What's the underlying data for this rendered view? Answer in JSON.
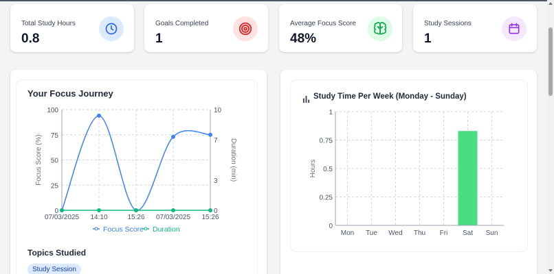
{
  "stats": [
    {
      "title": "Total Study Hours",
      "value": "0.8",
      "icon": "clock-icon",
      "icon_bg": "#dbeafe",
      "icon_color": "#2563eb"
    },
    {
      "title": "Goals Completed",
      "value": "1",
      "icon": "target-icon",
      "icon_bg": "#fee2e2",
      "icon_color": "#dc2626"
    },
    {
      "title": "Average Focus Score",
      "value": "48%",
      "icon": "brain-icon",
      "icon_bg": "#dcfce7",
      "icon_color": "#16a34a"
    },
    {
      "title": "Study Sessions",
      "value": "1",
      "icon": "calendar-icon",
      "icon_bg": "#f3e8ff",
      "icon_color": "#9333ea"
    }
  ],
  "focus_panel": {
    "title": "Your Focus Journey",
    "topics_title": "Topics Studied",
    "topics": [
      "Study Session"
    ]
  },
  "weekly_panel": {
    "title": "Study Time Per Week (Monday - Sunday)",
    "icon": "bar-chart-icon"
  },
  "chart_data": [
    {
      "type": "line",
      "categories": [
        "07/03/2025",
        "14:10",
        "15:26",
        "07/03/2025",
        "15:26"
      ],
      "series": [
        {
          "name": "Focus Score",
          "axis": "left",
          "color": "#3b82f6",
          "values": [
            0,
            94,
            0,
            73,
            75
          ]
        },
        {
          "name": "Duration",
          "axis": "right",
          "color": "#10b981",
          "values": [
            0,
            0,
            0,
            0,
            0
          ]
        }
      ],
      "ylabel": "Focus Score (%)",
      "ylim": [
        0,
        100
      ],
      "yticks": [
        0,
        25,
        50,
        75,
        100
      ],
      "y2label": "Duration (min)",
      "y2lim": [
        0,
        10
      ],
      "y2ticks": [
        0,
        3,
        7,
        10
      ],
      "grid": true,
      "legend": "bottom"
    },
    {
      "type": "bar",
      "categories": [
        "Mon",
        "Tue",
        "Wed",
        "Thu",
        "Fri",
        "Sat",
        "Sun"
      ],
      "values": [
        0,
        0,
        0,
        0,
        0,
        0.83,
        0
      ],
      "ylabel": "Hours",
      "ylim": [
        0,
        1
      ],
      "yticks": [
        "0",
        "0.25",
        "0.5",
        "0.75",
        "1"
      ],
      "color": "#4ade80",
      "grid": true
    }
  ]
}
